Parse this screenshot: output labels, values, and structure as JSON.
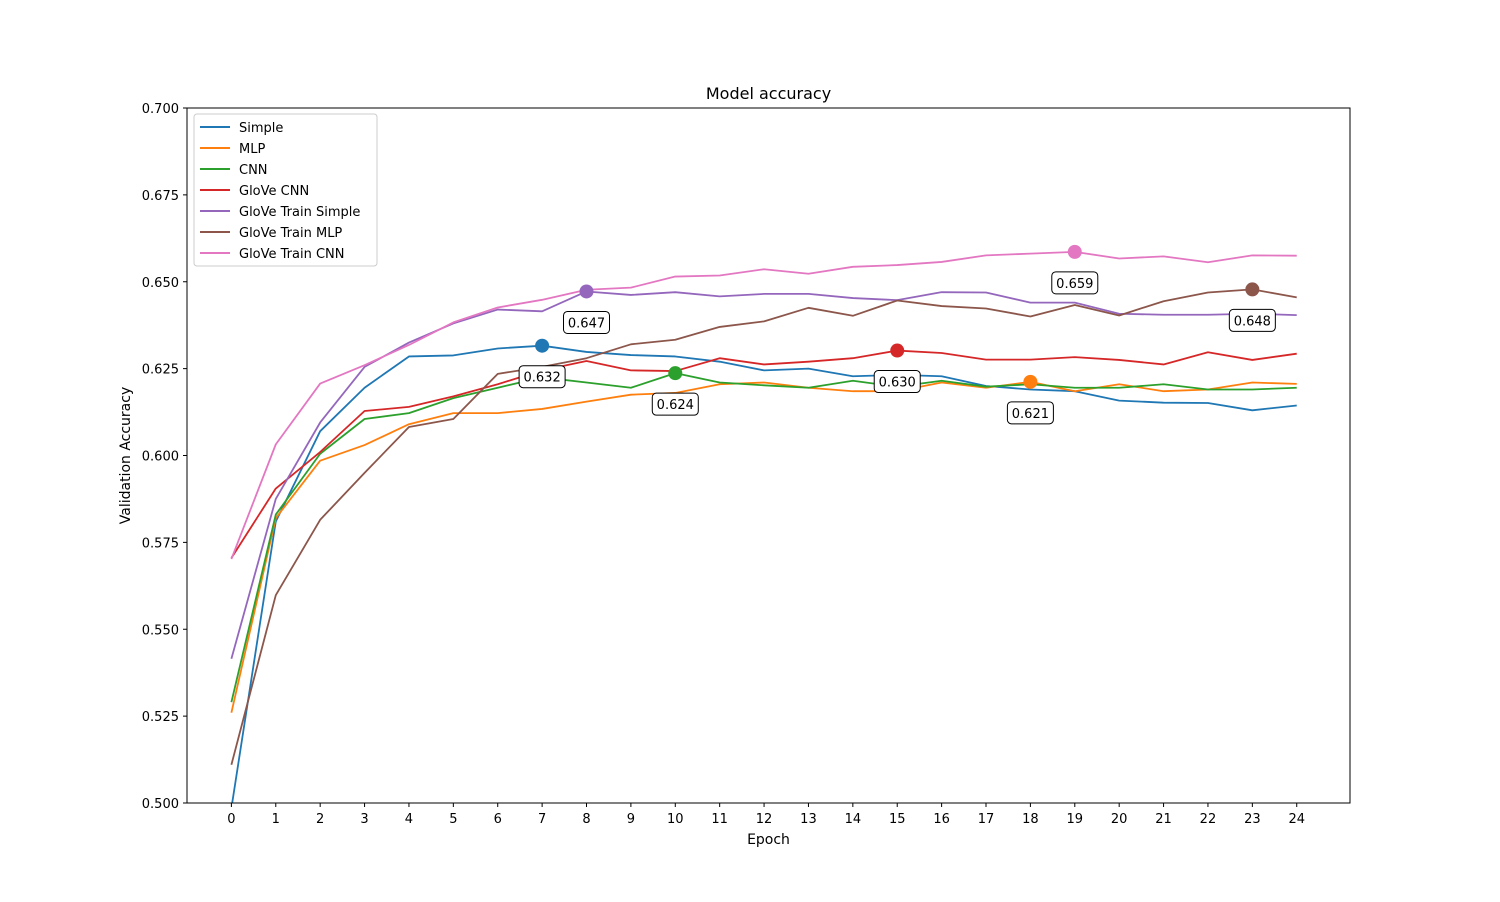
{
  "chart_data": {
    "type": "line",
    "title": "Model accuracy",
    "xlabel": "Epoch",
    "ylabel": "Validation Accuracy",
    "xlim": [
      -1.0,
      25.2
    ],
    "ylim": [
      0.5,
      0.7
    ],
    "xticks": [
      0,
      1,
      2,
      3,
      4,
      5,
      6,
      7,
      8,
      9,
      10,
      11,
      12,
      13,
      14,
      15,
      16,
      17,
      18,
      19,
      20,
      21,
      22,
      23,
      24
    ],
    "yticks": [
      0.5,
      0.525,
      0.55,
      0.575,
      0.6,
      0.625,
      0.65,
      0.675,
      0.7
    ],
    "ytick_labels": [
      "0.500",
      "0.525",
      "0.550",
      "0.575",
      "0.600",
      "0.625",
      "0.650",
      "0.675",
      "0.700"
    ],
    "grid": false,
    "legend_position": "top-left",
    "x": [
      0,
      1,
      2,
      3,
      4,
      5,
      6,
      7,
      8,
      9,
      10,
      11,
      12,
      13,
      14,
      15,
      16,
      17,
      18,
      19,
      20,
      21,
      22,
      23,
      24
    ],
    "series": [
      {
        "name": "Simple",
        "color": "#1f77b4",
        "values": [
          0.4985,
          0.581,
          0.607,
          0.6195,
          0.6285,
          0.6288,
          0.6308,
          0.6316,
          0.6298,
          0.6289,
          0.6285,
          0.627,
          0.6245,
          0.625,
          0.6228,
          0.6232,
          0.6228,
          0.62,
          0.619,
          0.6185,
          0.6158,
          0.6152,
          0.6151,
          0.613,
          0.6144
        ],
        "best": {
          "epoch": 7,
          "value": 0.6316,
          "label": "0.632"
        }
      },
      {
        "name": "MLP",
        "color": "#ff7f0e",
        "values": [
          0.526,
          0.582,
          0.5985,
          0.603,
          0.609,
          0.6122,
          0.6122,
          0.6134,
          0.6155,
          0.6175,
          0.618,
          0.6205,
          0.621,
          0.6195,
          0.6185,
          0.6185,
          0.621,
          0.6195,
          0.6212,
          0.6185,
          0.6205,
          0.6185,
          0.619,
          0.621,
          0.6206
        ],
        "best": {
          "epoch": 18,
          "value": 0.6212,
          "label": "0.621"
        }
      },
      {
        "name": "CNN",
        "color": "#2ca02c",
        "values": [
          0.529,
          0.583,
          0.6005,
          0.6105,
          0.6122,
          0.6165,
          0.6195,
          0.6225,
          0.621,
          0.6195,
          0.6237,
          0.621,
          0.6202,
          0.6195,
          0.6215,
          0.6198,
          0.6215,
          0.6198,
          0.6205,
          0.6195,
          0.6195,
          0.6205,
          0.619,
          0.619,
          0.6195
        ],
        "best": {
          "epoch": 10,
          "value": 0.6237,
          "label": "0.624"
        }
      },
      {
        "name": "GloVe CNN",
        "color": "#d62728",
        "values": [
          0.5705,
          0.5905,
          0.601,
          0.6128,
          0.614,
          0.617,
          0.6205,
          0.6245,
          0.6272,
          0.6245,
          0.6243,
          0.628,
          0.6262,
          0.627,
          0.628,
          0.6302,
          0.6295,
          0.6276,
          0.6276,
          0.6283,
          0.6275,
          0.6262,
          0.6297,
          0.6275,
          0.6293
        ],
        "best": {
          "epoch": 15,
          "value": 0.6302,
          "label": "0.630"
        }
      },
      {
        "name": "GloVe Train Simple",
        "color": "#9467bd",
        "values": [
          0.5415,
          0.5875,
          0.6095,
          0.6255,
          0.6325,
          0.638,
          0.642,
          0.6415,
          0.6472,
          0.6462,
          0.647,
          0.6458,
          0.6465,
          0.6465,
          0.6453,
          0.6447,
          0.647,
          0.6469,
          0.644,
          0.644,
          0.6408,
          0.6405,
          0.6405,
          0.6408,
          0.6404
        ],
        "best": {
          "epoch": 8,
          "value": 0.6472,
          "label": "0.647"
        }
      },
      {
        "name": "GloVe Train MLP",
        "color": "#8c564b",
        "values": [
          0.511,
          0.5598,
          0.5815,
          0.595,
          0.6082,
          0.6105,
          0.6235,
          0.6255,
          0.628,
          0.632,
          0.6333,
          0.637,
          0.6386,
          0.6425,
          0.6402,
          0.6446,
          0.643,
          0.6423,
          0.64,
          0.6433,
          0.6403,
          0.6444,
          0.6469,
          0.6478,
          0.6455
        ],
        "best": {
          "epoch": 23,
          "value": 0.6478,
          "label": "0.648"
        }
      },
      {
        "name": "GloVe Train CNN",
        "color": "#e377c2",
        "values": [
          0.5702,
          0.6032,
          0.6207,
          0.626,
          0.6318,
          0.6383,
          0.6426,
          0.6448,
          0.6477,
          0.6483,
          0.6515,
          0.6518,
          0.6536,
          0.6523,
          0.6543,
          0.6548,
          0.6557,
          0.6576,
          0.6581,
          0.6586,
          0.6567,
          0.6573,
          0.6556,
          0.6576,
          0.6575
        ],
        "best": {
          "epoch": 19,
          "value": 0.6586,
          "label": "0.659"
        }
      }
    ]
  }
}
